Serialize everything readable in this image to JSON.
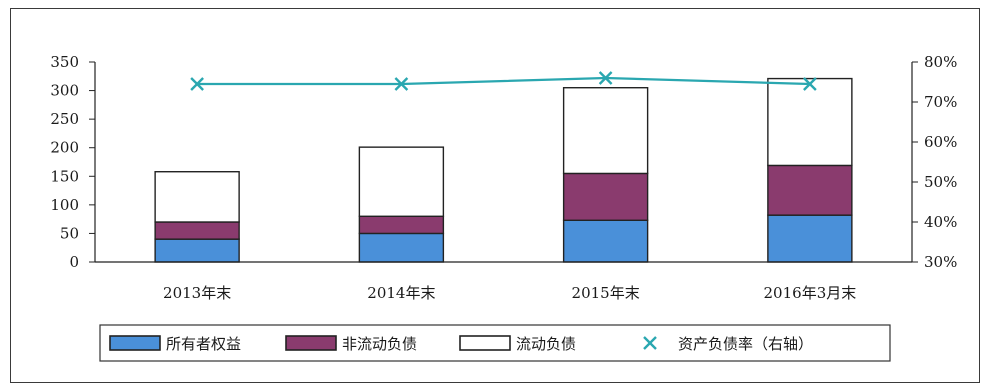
{
  "chart_data": {
    "type": "bar",
    "stacked": true,
    "categories": [
      "2013年末",
      "2014年末",
      "2015年末",
      "2016年3月末"
    ],
    "series": [
      {
        "name": "所有者权益",
        "type": "bar",
        "axis": "left",
        "color": "#4a90d9",
        "values": [
          40,
          50,
          73,
          82
        ]
      },
      {
        "name": "非流动负债",
        "type": "bar",
        "axis": "left",
        "color": "#8a3b6e",
        "values": [
          30,
          30,
          82,
          87
        ]
      },
      {
        "name": "流动负债",
        "type": "bar",
        "axis": "left",
        "color": "#ffffff",
        "values": [
          88,
          121,
          150,
          152
        ]
      },
      {
        "name": "资产负债率（右轴）",
        "type": "scatter-line",
        "axis": "right",
        "color": "#2aa7b0",
        "values": [
          0.745,
          0.745,
          0.76,
          0.745
        ]
      }
    ],
    "y_left": {
      "min": 0,
      "max": 350,
      "ticks": [
        "0",
        "50",
        "100",
        "150",
        "200",
        "250",
        "300",
        "350"
      ]
    },
    "y_right": {
      "min": 0.3,
      "max": 0.8,
      "ticks": [
        "30%",
        "40%",
        "50%",
        "60%",
        "70%",
        "80%"
      ]
    },
    "legend": "bottom"
  }
}
